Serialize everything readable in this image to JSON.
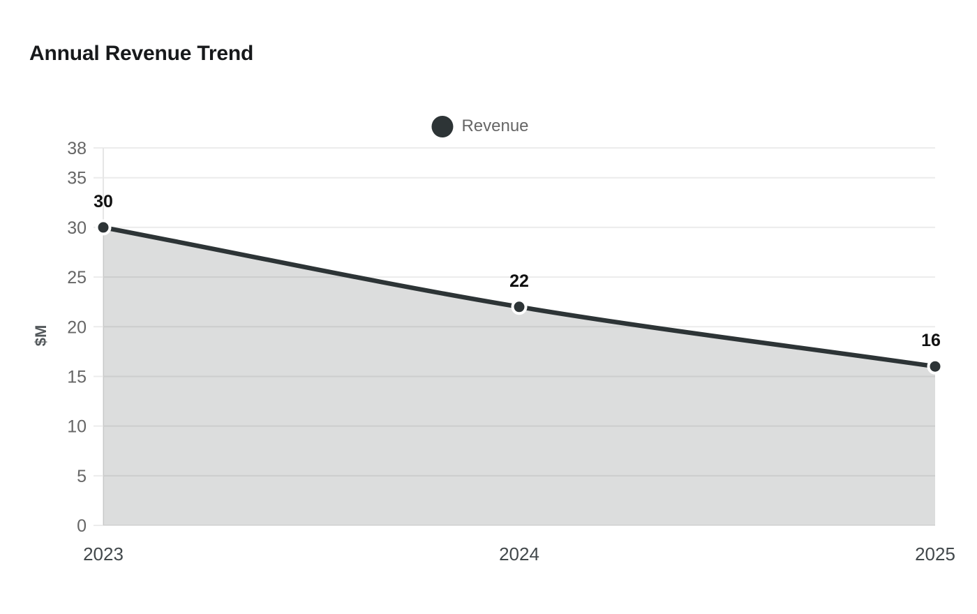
{
  "header": {
    "title": "Annual Revenue Trend"
  },
  "legend": {
    "position": "top-center",
    "items": [
      {
        "label": "Revenue",
        "swatch": "circle-icon",
        "color": "#2d3436"
      }
    ]
  },
  "chart_data": {
    "type": "area",
    "title": "Annual Revenue Trend",
    "categories": [
      "2023",
      "2024",
      "2025"
    ],
    "series": [
      {
        "name": "Revenue",
        "values": [
          30,
          22,
          16
        ],
        "color": "#2d3436",
        "fill_opacity": 0.17
      }
    ],
    "point_labels": [
      "30",
      "22",
      "16"
    ],
    "xlabel": "",
    "ylabel": "$M",
    "yticks": [
      0,
      5,
      10,
      15,
      20,
      25,
      30,
      35,
      38
    ],
    "ylim": [
      0,
      38
    ],
    "grid": "horizontal",
    "curve": "monotone",
    "legend_position": "top-center",
    "colors": {
      "line": "#2d3436",
      "marker_fill": "#2d3436",
      "marker_stroke": "#ffffff",
      "grid": "#ececec",
      "axis_line": "#e6e6e6",
      "y_tick_label": "#666666",
      "x_tick_label": "#42484b",
      "data_label": "#111111",
      "ylabel": "#53585b",
      "title": "#17191b",
      "legend_text": "#666666",
      "background": "#ffffff"
    }
  }
}
